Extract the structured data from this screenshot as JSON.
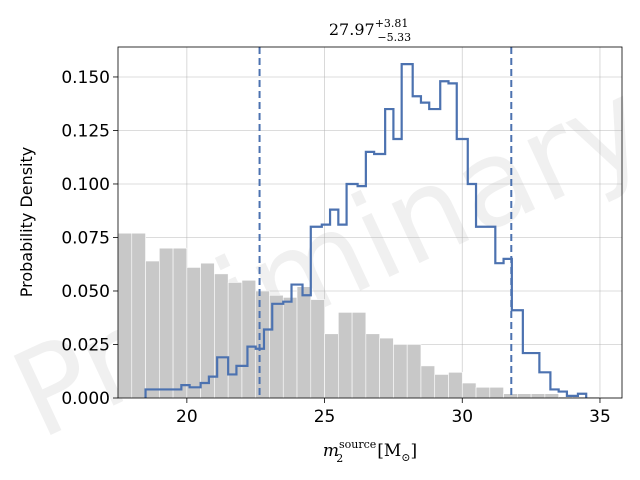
{
  "chart_data": {
    "type": "bar",
    "title": {
      "value": "27.97",
      "sup": "+3.81",
      "sub": "−5.33"
    },
    "xlabel": {
      "base": "m",
      "sub": "2",
      "sup": "source",
      "unit": "[M",
      "unit_sub": "⊙",
      "unit_close": "]"
    },
    "ylabel": "Probability Density",
    "watermark": "Preliminary",
    "xlim": [
      17.5,
      35.8
    ],
    "ylim": [
      0.0,
      0.164
    ],
    "xticks": [
      20,
      25,
      30,
      35
    ],
    "xtick_labels": [
      "20",
      "25",
      "30",
      "35"
    ],
    "yticks": [
      0.0,
      0.025,
      0.05,
      0.075,
      0.1,
      0.125,
      0.15
    ],
    "ytick_labels": [
      "0.000",
      "0.025",
      "0.050",
      "0.075",
      "0.100",
      "0.125",
      "0.150"
    ],
    "grid": true,
    "colors": {
      "prior": "#c8c8c8",
      "posterior": "#4c72b0",
      "quantile_lines": "#4c72b0"
    },
    "prior_histogram": {
      "bin_edges": [
        17.5,
        18.0,
        18.5,
        19.0,
        19.5,
        20.0,
        20.5,
        21.0,
        21.5,
        22.0,
        22.5,
        23.0,
        23.5,
        24.0,
        24.5,
        25.0,
        25.5,
        26.0,
        26.5,
        27.0,
        27.5,
        28.0,
        28.5,
        29.0,
        29.5,
        30.0,
        30.5,
        31.0,
        31.5,
        32.0,
        32.5,
        33.0,
        33.5,
        34.0,
        34.5,
        35.0
      ],
      "values": [
        0.077,
        0.077,
        0.064,
        0.07,
        0.07,
        0.061,
        0.063,
        0.058,
        0.054,
        0.055,
        0.05,
        0.048,
        0.047,
        0.052,
        0.046,
        0.03,
        0.04,
        0.04,
        0.03,
        0.028,
        0.025,
        0.025,
        0.015,
        0.011,
        0.012,
        0.007,
        0.005,
        0.005,
        0.002,
        0.002,
        0.002,
        0.002,
        0.0005,
        0.0005,
        0.0005
      ]
    },
    "posterior_histogram": {
      "bin_edges": [
        18.5,
        19.0,
        19.5,
        19.8,
        20.1,
        20.5,
        20.8,
        21.1,
        21.5,
        21.8,
        22.2,
        22.5,
        22.8,
        23.1,
        23.5,
        23.8,
        24.2,
        24.5,
        24.9,
        25.2,
        25.5,
        25.8,
        26.2,
        26.5,
        26.8,
        27.2,
        27.5,
        27.8,
        28.2,
        28.5,
        28.8,
        29.2,
        29.5,
        29.8,
        30.2,
        30.5,
        30.8,
        31.2,
        31.5,
        31.8,
        32.2,
        32.5,
        32.8,
        33.2,
        33.5,
        33.8,
        34.2,
        34.5
      ],
      "values": [
        0.004,
        0.004,
        0.004,
        0.006,
        0.005,
        0.007,
        0.01,
        0.019,
        0.011,
        0.015,
        0.024,
        0.023,
        0.032,
        0.044,
        0.045,
        0.053,
        0.048,
        0.08,
        0.081,
        0.088,
        0.081,
        0.1,
        0.099,
        0.115,
        0.114,
        0.135,
        0.121,
        0.156,
        0.141,
        0.138,
        0.135,
        0.148,
        0.147,
        0.121,
        0.1,
        0.08,
        0.08,
        0.063,
        0.065,
        0.041,
        0.021,
        0.021,
        0.012,
        0.004,
        0.003,
        0.001,
        0.002
      ]
    },
    "quantile_lines": [
      22.64,
      31.78
    ]
  }
}
